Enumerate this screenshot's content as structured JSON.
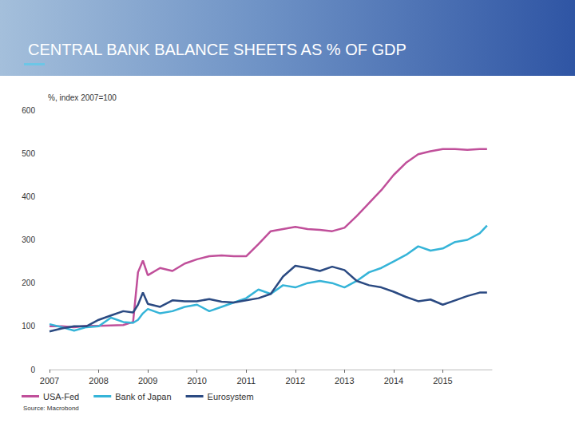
{
  "chart_data": {
    "type": "line",
    "title": "CENTRAL BANK BALANCE SHEETS AS % OF GDP",
    "subtitle": "%, index 2007=100",
    "source": "Source: Macrobond",
    "x": [
      2007,
      2007.25,
      2007.5,
      2007.75,
      2008,
      2008.25,
      2008.5,
      2008.7,
      2008.8,
      2008.9,
      2009,
      2009.25,
      2009.5,
      2009.75,
      2010,
      2010.25,
      2010.5,
      2010.75,
      2011,
      2011.25,
      2011.5,
      2011.75,
      2012,
      2012.25,
      2012.5,
      2012.75,
      2013,
      2013.25,
      2013.5,
      2013.75,
      2014,
      2014.25,
      2014.5,
      2014.75,
      2015,
      2015.25,
      2015.5,
      2015.75,
      2015.9
    ],
    "series": [
      {
        "name": "USA-Fed",
        "color": "#c04f9a",
        "values": [
          100,
          100,
          98,
          101,
          101,
          102,
          103,
          110,
          225,
          252,
          218,
          235,
          228,
          245,
          255,
          262,
          264,
          262,
          262,
          290,
          320,
          325,
          330,
          325,
          323,
          320,
          328,
          355,
          385,
          415,
          450,
          478,
          498,
          505,
          510,
          510,
          508,
          510,
          510
        ]
      },
      {
        "name": "Bank of Japan",
        "color": "#35b4d8",
        "values": [
          105,
          98,
          90,
          98,
          100,
          120,
          110,
          108,
          115,
          130,
          140,
          130,
          135,
          145,
          150,
          135,
          145,
          155,
          165,
          185,
          175,
          195,
          190,
          200,
          205,
          200,
          190,
          205,
          225,
          235,
          250,
          265,
          285,
          275,
          280,
          295,
          300,
          315,
          333
        ]
      },
      {
        "name": "Eurosystem",
        "color": "#2b4a82",
        "values": [
          88,
          95,
          100,
          100,
          115,
          125,
          135,
          132,
          150,
          178,
          152,
          145,
          160,
          158,
          158,
          163,
          157,
          155,
          160,
          165,
          175,
          215,
          240,
          235,
          228,
          238,
          230,
          205,
          195,
          190,
          180,
          168,
          158,
          162,
          150,
          160,
          170,
          178,
          178
        ]
      }
    ],
    "xlim": [
      2007,
      2016
    ],
    "xticks": [
      2007,
      2008,
      2009,
      2010,
      2011,
      2012,
      2013,
      2014,
      2015
    ],
    "ylim": [
      0,
      600
    ],
    "yticks": [
      0,
      100,
      200,
      300,
      400,
      500,
      600
    ],
    "grid": false,
    "legend": "bottom-left"
  }
}
